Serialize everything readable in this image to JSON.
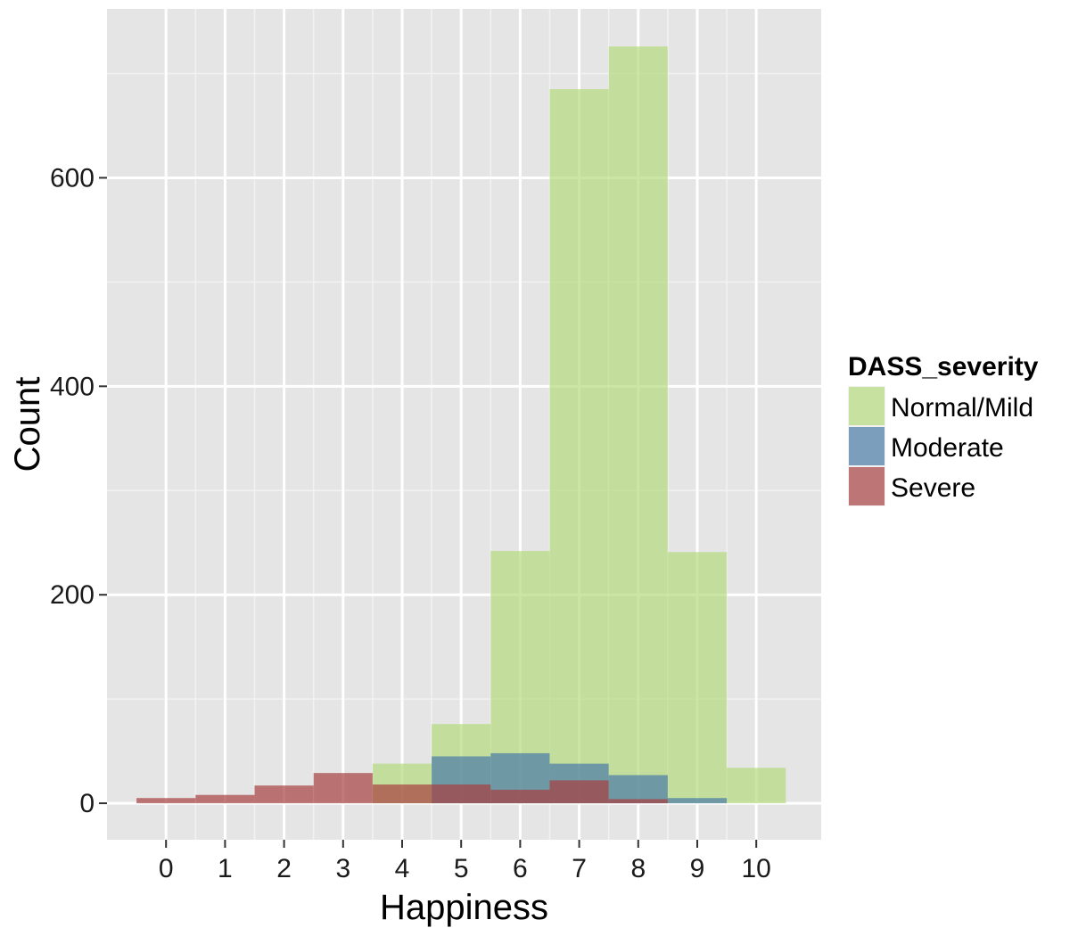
{
  "chart_data": {
    "type": "bar",
    "xlabel": "Happiness",
    "ylabel": "Count",
    "x": [
      0,
      1,
      2,
      3,
      4,
      5,
      6,
      7,
      8,
      9,
      10
    ],
    "x_ticks": [
      "0",
      "1",
      "2",
      "3",
      "4",
      "5",
      "6",
      "7",
      "8",
      "9",
      "10"
    ],
    "y_ticks": [
      "0",
      "200",
      "400",
      "600"
    ],
    "xlim": [
      -1,
      11.1
    ],
    "ylim": [
      -35,
      762
    ],
    "grid": true,
    "legend": {
      "title": "DASS_severity",
      "position": "right"
    },
    "series": [
      {
        "name": "Normal/Mild",
        "color": "#b5dc7e",
        "values": [
          0,
          0,
          0,
          0,
          38,
          76,
          242,
          685,
          726,
          241,
          34
        ]
      },
      {
        "name": "Moderate",
        "color": "#4a7ba7",
        "values": [
          0,
          0,
          0,
          0,
          0,
          45,
          48,
          38,
          27,
          5,
          0
        ]
      },
      {
        "name": "Severe",
        "color": "#a64040",
        "values": [
          5,
          8,
          17,
          29,
          18,
          18,
          13,
          22,
          4,
          0,
          0
        ]
      }
    ]
  }
}
